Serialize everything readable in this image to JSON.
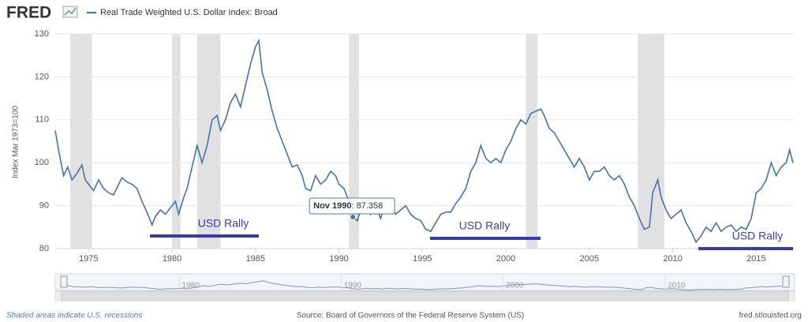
{
  "header": {
    "logo": "FRED"
  },
  "chart_data": {
    "type": "line",
    "y_label": "Index Mar 1973=100",
    "xlim": [
      1973,
      2017.3
    ],
    "xticks": [
      1975,
      1980,
      1985,
      1990,
      1995,
      2000,
      2005,
      2010,
      2015
    ],
    "ylim": [
      80,
      130
    ],
    "yticks": [
      80,
      90,
      100,
      110,
      120,
      130
    ],
    "grid": true,
    "recessions": [
      [
        1973.9,
        1975.2
      ],
      [
        1980.0,
        1980.5
      ],
      [
        1981.5,
        1982.9
      ],
      [
        1990.6,
        1991.2
      ],
      [
        2001.2,
        2001.9
      ],
      [
        2007.9,
        2009.5
      ]
    ],
    "x": [
      1973.0,
      1973.2,
      1973.5,
      1973.75,
      1974.0,
      1974.3,
      1974.6,
      1974.8,
      1975.0,
      1975.3,
      1975.6,
      1975.9,
      1976.2,
      1976.5,
      1976.8,
      1977.0,
      1977.3,
      1977.6,
      1977.9,
      1978.2,
      1978.5,
      1978.8,
      1979.0,
      1979.3,
      1979.6,
      1979.9,
      1980.2,
      1980.4,
      1980.7,
      1980.9,
      1981.2,
      1981.5,
      1981.8,
      1982.1,
      1982.4,
      1982.7,
      1982.9,
      1983.2,
      1983.5,
      1983.8,
      1984.1,
      1984.4,
      1984.7,
      1985.0,
      1985.2,
      1985.4,
      1985.7,
      1986.0,
      1986.3,
      1986.6,
      1986.9,
      1987.2,
      1987.5,
      1987.8,
      1988.0,
      1988.3,
      1988.6,
      1988.9,
      1989.2,
      1989.5,
      1989.8,
      1990.0,
      1990.3,
      1990.6,
      1990.83,
      1991.1,
      1991.3,
      1991.6,
      1991.9,
      1992.2,
      1992.5,
      1992.8,
      1993.1,
      1993.4,
      1993.7,
      1994.0,
      1994.3,
      1994.6,
      1994.9,
      1995.2,
      1995.5,
      1995.8,
      1996.1,
      1996.4,
      1996.7,
      1997.0,
      1997.3,
      1997.6,
      1997.9,
      1998.2,
      1998.5,
      1998.8,
      1999.1,
      1999.4,
      1999.7,
      2000.0,
      2000.3,
      2000.6,
      2000.9,
      2001.2,
      2001.5,
      2001.8,
      2002.1,
      2002.3,
      2002.6,
      2002.9,
      2003.2,
      2003.5,
      2003.8,
      2004.1,
      2004.4,
      2004.7,
      2005.0,
      2005.3,
      2005.6,
      2005.9,
      2006.2,
      2006.5,
      2006.8,
      2007.1,
      2007.4,
      2007.7,
      2008.0,
      2008.3,
      2008.6,
      2008.8,
      2009.1,
      2009.3,
      2009.6,
      2009.9,
      2010.2,
      2010.5,
      2010.8,
      2011.1,
      2011.4,
      2011.7,
      2012.0,
      2012.3,
      2012.6,
      2012.9,
      2013.2,
      2013.5,
      2013.8,
      2014.1,
      2014.4,
      2014.7,
      2015.0,
      2015.3,
      2015.6,
      2015.9,
      2016.2,
      2016.5,
      2016.8,
      2017.0,
      2017.2
    ],
    "series": [
      {
        "name": "Real Trade Weighted U.S. Dollar Index: Broad",
        "color": "#4572a7",
        "values": [
          107.5,
          103,
          97,
          99,
          96,
          97.5,
          99.5,
          96,
          95,
          93.5,
          96,
          94,
          93,
          92.5,
          95,
          96.5,
          95.5,
          95,
          94,
          91,
          88.5,
          85.5,
          87.5,
          89,
          88,
          89.5,
          91,
          88,
          92,
          94,
          99,
          104,
          100,
          104,
          110,
          111,
          107.5,
          110,
          114,
          116,
          113,
          118,
          123,
          127,
          128.5,
          121,
          117,
          112,
          108,
          105,
          102,
          99,
          99.5,
          97,
          94,
          93.5,
          97,
          95,
          96,
          98,
          97,
          95,
          94,
          91,
          87.358,
          86.5,
          89,
          91,
          88,
          90,
          87,
          91,
          90,
          88,
          89,
          90,
          88,
          87,
          86.5,
          84.5,
          84,
          86,
          88,
          88.5,
          88.5,
          90.5,
          92,
          94,
          98,
          100,
          104,
          101,
          100,
          101,
          100,
          103,
          105,
          108,
          110,
          109,
          111.5,
          112,
          112.5,
          111,
          108,
          107,
          105,
          103,
          101,
          99,
          101,
          99,
          96,
          98,
          98,
          99,
          97,
          96,
          97,
          95,
          92,
          90,
          87,
          84.5,
          85,
          93,
          96,
          92,
          89,
          87,
          88,
          89,
          86,
          84,
          81.5,
          83,
          85,
          84,
          86,
          84,
          85,
          85.5,
          84,
          85,
          84.5,
          87,
          93,
          94,
          96,
          100,
          97,
          99,
          100,
          103,
          100
        ]
      }
    ],
    "annotations": [
      "USD Rally",
      "USD Rally",
      "USD Rally"
    ],
    "tooltip": {
      "label": "Nov 1990",
      "value": 87.358
    },
    "navigator_xticks": [
      1980,
      1990,
      2000,
      2010
    ],
    "recession_note": "Shaded areas indicate U.S. recessions",
    "source": "Source: Board of Governors of the Federal Reserve System (US)",
    "site": "fred.stlouisfed.org"
  }
}
